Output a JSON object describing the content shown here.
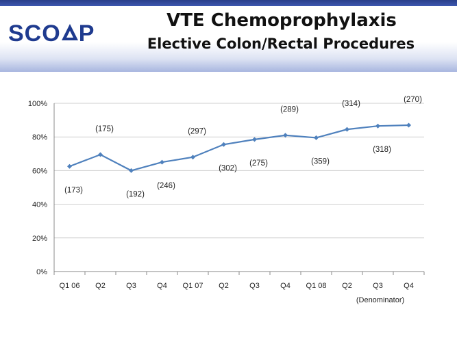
{
  "header": {
    "logo_text_before": "SCO",
    "logo_text_after": "P",
    "title": "VTE Chemoprophylaxis",
    "subtitle": "Elective Colon/Rectal Procedures"
  },
  "colors": {
    "brand": "#1f3b8f",
    "series_line": "#4f81bd",
    "grid": "#cfcfcf"
  },
  "chart_data": {
    "type": "line",
    "title": "",
    "xlabel": "",
    "ylabel": "",
    "ylim": [
      0,
      100
    ],
    "y_ticks": [
      "0%",
      "20%",
      "40%",
      "60%",
      "80%",
      "100%"
    ],
    "grid": true,
    "categories": [
      "Q1 06",
      "Q2",
      "Q3",
      "Q4",
      "Q1 07",
      "Q2",
      "Q3",
      "Q4",
      "Q1 08",
      "Q2",
      "Q3",
      "Q4"
    ],
    "series": [
      {
        "values": [
          62.5,
          69.5,
          60,
          65,
          68,
          75.5,
          78.5,
          81,
          79.5,
          84.5,
          86.5,
          87
        ],
        "denominators": [
          "(173)",
          "(175)",
          "(192)",
          "(246)",
          "(297)",
          "(302)",
          "(275)",
          "(289)",
          "(359)",
          "(314)",
          "(318)",
          "(270)"
        ],
        "label_side": [
          "below",
          "above",
          "below",
          "below",
          "above",
          "below",
          "below",
          "above",
          "below",
          "above",
          "below",
          "above"
        ]
      }
    ],
    "annotation": "(Denominator)"
  }
}
